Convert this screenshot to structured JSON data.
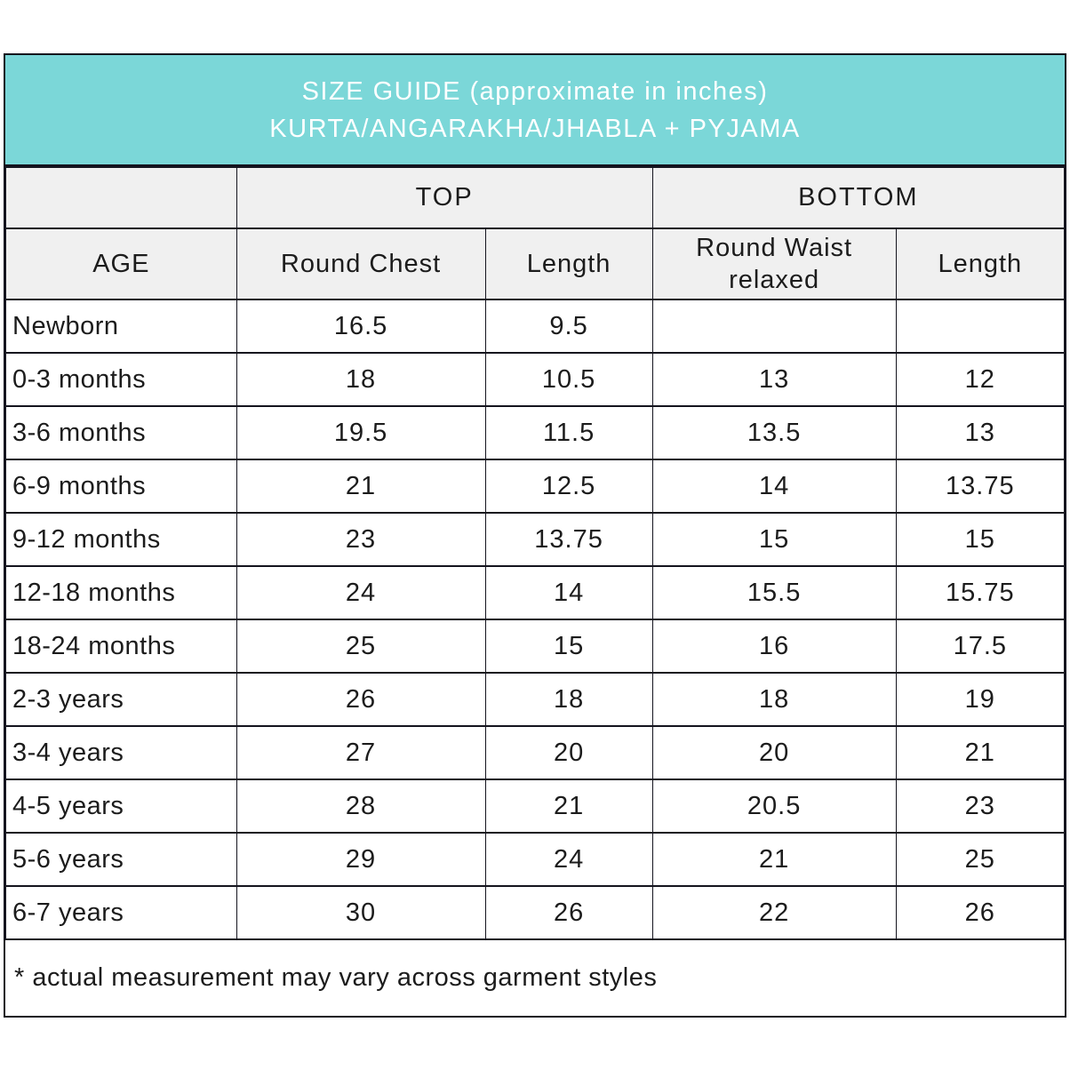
{
  "header": {
    "title_line1": "SIZE GUIDE (approximate in inches)",
    "title_line2": "KURTA/ANGARAKHA/JHABLA + PYJAMA"
  },
  "chart_data": {
    "type": "table",
    "title": "SIZE GUIDE (approximate in inches) KURTA/ANGARAKHA/JHABLA + PYJAMA",
    "units": "inches",
    "group_headers": {
      "top": "TOP",
      "bottom": "BOTTOM"
    },
    "columns": [
      "AGE",
      "Round Chest",
      "Length",
      "Round Waist relaxed",
      "Length"
    ],
    "rows": [
      {
        "age": "Newborn",
        "values": [
          "16.5",
          "9.5",
          "",
          ""
        ]
      },
      {
        "age": "0-3 months",
        "values": [
          "18",
          "10.5",
          "13",
          "12"
        ]
      },
      {
        "age": "3-6 months",
        "values": [
          "19.5",
          "11.5",
          "13.5",
          "13"
        ]
      },
      {
        "age": "6-9 months",
        "values": [
          "21",
          "12.5",
          "14",
          "13.75"
        ]
      },
      {
        "age": "9-12 months",
        "values": [
          "23",
          "13.75",
          "15",
          "15"
        ]
      },
      {
        "age": "12-18 months",
        "values": [
          "24",
          "14",
          "15.5",
          "15.75"
        ]
      },
      {
        "age": "18-24 months",
        "values": [
          "25",
          "15",
          "16",
          "17.5"
        ]
      },
      {
        "age": "2-3 years",
        "values": [
          "26",
          "18",
          "18",
          "19"
        ]
      },
      {
        "age": "3-4 years",
        "values": [
          "27",
          "20",
          "20",
          "21"
        ]
      },
      {
        "age": "4-5 years",
        "values": [
          "28",
          "21",
          "20.5",
          "23"
        ]
      },
      {
        "age": "5-6 years",
        "values": [
          "29",
          "24",
          "21",
          "25"
        ]
      },
      {
        "age": "6-7 years",
        "values": [
          "30",
          "26",
          "22",
          "26"
        ]
      }
    ],
    "footnote": "* actual measurement may vary across garment styles"
  },
  "colors": {
    "header_teal": "#7bd7d8",
    "header_text": "#ffffff",
    "subheader_bg": "#f0f0f0",
    "border": "#14141e",
    "text": "#1c1c1c"
  }
}
